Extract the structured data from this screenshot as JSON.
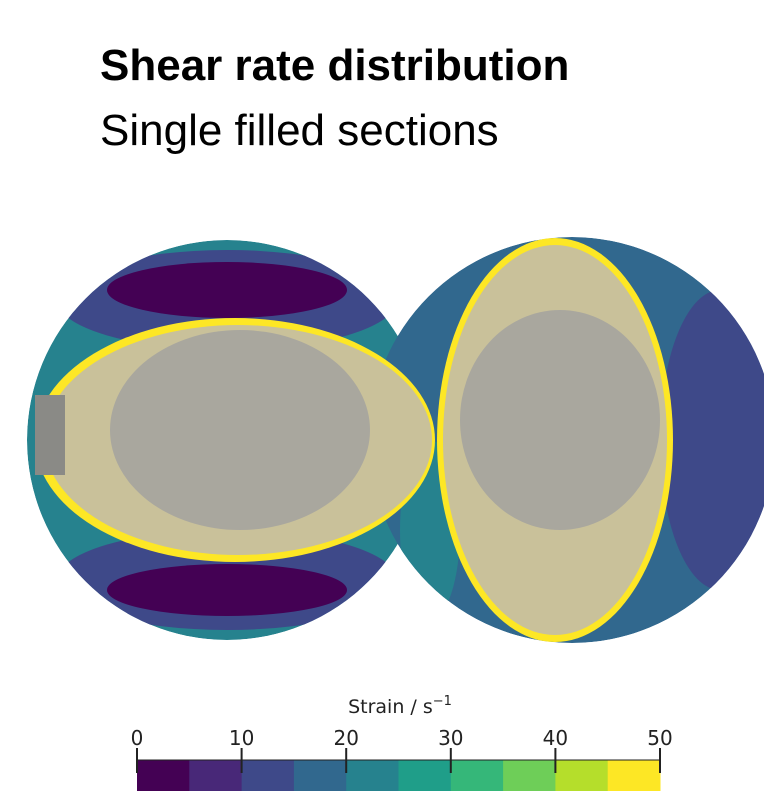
{
  "header": {
    "title": "Shear rate distribution",
    "subtitle": "Single filled sections"
  },
  "colorbar": {
    "label": {
      "text": "Strain / s",
      "superscript": "−1"
    },
    "xlim": [
      0,
      50
    ],
    "xticks": [
      0,
      10,
      20,
      30,
      40,
      50
    ],
    "bins": [
      0,
      5,
      10,
      15,
      20,
      25,
      30,
      35,
      40,
      45,
      50
    ],
    "colors": [
      "#440154",
      "#482878",
      "#3e4989",
      "#31688e",
      "#26828e",
      "#1f9e89",
      "#35b779",
      "#6ece58",
      "#b5de2b",
      "#fde725"
    ]
  }
}
